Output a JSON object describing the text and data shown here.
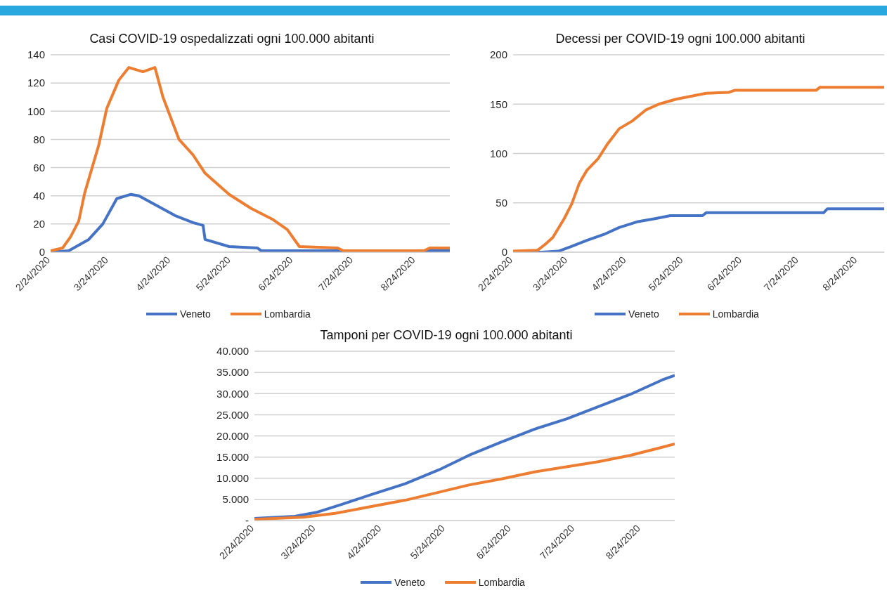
{
  "chart_data": [
    {
      "type": "line",
      "title": "Casi COVID-19 ospedalizzati ogni 100.000 abitanti",
      "xlim": [
        "2020-02-24",
        "2020-09-10"
      ],
      "xticks": [
        {
          "value": "2020-02-24",
          "label": "2/24/2020"
        },
        {
          "value": "2020-03-24",
          "label": "3/24/2020"
        },
        {
          "value": "2020-04-24",
          "label": "4/24/2020"
        },
        {
          "value": "2020-05-24",
          "label": "5/24/2020"
        },
        {
          "value": "2020-06-24",
          "label": "6/24/2020"
        },
        {
          "value": "2020-07-24",
          "label": "7/24/2020"
        },
        {
          "value": "2020-08-24",
          "label": "8/24/2020"
        }
      ],
      "ylim": [
        0,
        140
      ],
      "yticks": [
        0,
        20,
        40,
        60,
        80,
        100,
        120,
        140
      ],
      "grid": "y",
      "legend": "bottom",
      "marker": "none",
      "series": [
        {
          "name": "Veneto",
          "color": "#4472c4",
          "x": [
            "2020-02-24",
            "2020-03-04",
            "2020-03-14",
            "2020-03-21",
            "2020-03-28",
            "2020-04-04",
            "2020-04-08",
            "2020-04-17",
            "2020-04-26",
            "2020-05-05",
            "2020-05-10",
            "2020-05-11",
            "2020-05-23",
            "2020-06-06",
            "2020-06-08",
            "2020-09-10"
          ],
          "values": [
            0,
            1,
            9,
            20,
            38,
            41,
            40,
            33,
            26,
            21,
            19,
            9,
            4,
            3,
            1,
            1
          ]
        },
        {
          "name": "Lombardia",
          "color": "#ed7d31",
          "x": [
            "2020-02-24",
            "2020-03-01",
            "2020-03-05",
            "2020-03-09",
            "2020-03-12",
            "2020-03-19",
            "2020-03-23",
            "2020-03-29",
            "2020-04-03",
            "2020-04-10",
            "2020-04-16",
            "2020-04-20",
            "2020-04-28",
            "2020-05-05",
            "2020-05-11",
            "2020-05-23",
            "2020-06-03",
            "2020-06-14",
            "2020-06-21",
            "2020-06-27",
            "2020-07-16",
            "2020-07-19",
            "2020-08-28",
            "2020-08-31",
            "2020-09-10"
          ],
          "values": [
            1,
            3,
            11,
            22,
            42,
            76,
            102,
            122,
            131,
            128,
            131,
            110,
            80,
            69,
            56,
            41,
            31,
            23,
            16,
            4,
            3,
            1,
            1,
            3,
            3
          ]
        }
      ]
    },
    {
      "type": "line",
      "title": "Decessi per COVID-19 ogni 100.000 abitanti",
      "xlim": [
        "2020-02-24",
        "2020-09-07"
      ],
      "xticks": [
        {
          "value": "2020-02-24",
          "label": "2/24/2020"
        },
        {
          "value": "2020-03-24",
          "label": "3/24/2020"
        },
        {
          "value": "2020-04-24",
          "label": "4/24/2020"
        },
        {
          "value": "2020-05-24",
          "label": "5/24/2020"
        },
        {
          "value": "2020-06-24",
          "label": "6/24/2020"
        },
        {
          "value": "2020-07-24",
          "label": "7/24/2020"
        },
        {
          "value": "2020-08-24",
          "label": "8/24/2020"
        }
      ],
      "ylim": [
        0,
        200
      ],
      "yticks": [
        0,
        50,
        100,
        150,
        200
      ],
      "grid": "y",
      "legend": "bottom",
      "marker": "none",
      "series": [
        {
          "name": "Veneto",
          "color": "#4472c4",
          "x": [
            "2020-02-24",
            "2020-03-10",
            "2020-03-19",
            "2020-03-26",
            "2020-04-03",
            "2020-04-12",
            "2020-04-20",
            "2020-04-30",
            "2020-05-09",
            "2020-05-17",
            "2020-06-03",
            "2020-06-05",
            "2020-08-06",
            "2020-08-08",
            "2020-09-07"
          ],
          "values": [
            0,
            0,
            1,
            6,
            12,
            18,
            25,
            31,
            34,
            37,
            37,
            40,
            40,
            44,
            44
          ]
        },
        {
          "name": "Lombardia",
          "color": "#ed7d31",
          "x": [
            "2020-02-24",
            "2020-03-08",
            "2020-03-12",
            "2020-03-16",
            "2020-03-22",
            "2020-03-26",
            "2020-03-30",
            "2020-04-03",
            "2020-04-09",
            "2020-04-14",
            "2020-04-20",
            "2020-04-27",
            "2020-05-04",
            "2020-05-11",
            "2020-05-20",
            "2020-05-28",
            "2020-06-05",
            "2020-06-17",
            "2020-06-20",
            "2020-08-02",
            "2020-08-04",
            "2020-09-07"
          ],
          "values": [
            1,
            2,
            8,
            15,
            34,
            49,
            70,
            83,
            95,
            110,
            125,
            133,
            144,
            150,
            155,
            158,
            161,
            162,
            164,
            164,
            167,
            167
          ]
        }
      ]
    },
    {
      "type": "line",
      "title": "Tamponi per COVID-19 ogni 100.000 abitanti",
      "xlim": [
        "2020-02-24",
        "2020-09-09"
      ],
      "xticks": [
        {
          "value": "2020-02-24",
          "label": "2/24/2020"
        },
        {
          "value": "2020-03-24",
          "label": "3/24/2020"
        },
        {
          "value": "2020-04-24",
          "label": "4/24/2020"
        },
        {
          "value": "2020-05-24",
          "label": "5/24/2020"
        },
        {
          "value": "2020-06-24",
          "label": "6/24/2020"
        },
        {
          "value": "2020-07-24",
          "label": "7/24/2020"
        },
        {
          "value": "2020-08-24",
          "label": "8/24/2020"
        }
      ],
      "ylim": [
        0,
        40000
      ],
      "yticks": [
        {
          "value": 0,
          "label": "-"
        },
        {
          "value": 5000,
          "label": "5.000"
        },
        {
          "value": 10000,
          "label": "10.000"
        },
        {
          "value": 15000,
          "label": "15.000"
        },
        {
          "value": 20000,
          "label": "20.000"
        },
        {
          "value": 25000,
          "label": "25.000"
        },
        {
          "value": 30000,
          "label": "30.000"
        },
        {
          "value": 35000,
          "label": "35.000"
        },
        {
          "value": 40000,
          "label": "40.000"
        }
      ],
      "grid": "y",
      "legend": "bottom",
      "marker": "none",
      "series": [
        {
          "name": "Veneto",
          "color": "#4472c4",
          "x": [
            "2020-02-24",
            "2020-03-14",
            "2020-03-24",
            "2020-04-05",
            "2020-04-20",
            "2020-05-05",
            "2020-05-21",
            "2020-06-04",
            "2020-06-19",
            "2020-07-05",
            "2020-07-20",
            "2020-08-04",
            "2020-08-19",
            "2020-09-03",
            "2020-09-09"
          ],
          "values": [
            500,
            1000,
            1900,
            3800,
            6300,
            8700,
            12000,
            15400,
            18500,
            21600,
            24000,
            26900,
            29800,
            33200,
            34300
          ]
        },
        {
          "name": "Lombardia",
          "color": "#ed7d31",
          "x": [
            "2020-02-24",
            "2020-03-18",
            "2020-04-02",
            "2020-04-20",
            "2020-05-05",
            "2020-05-21",
            "2020-06-04",
            "2020-06-19",
            "2020-07-05",
            "2020-07-20",
            "2020-08-04",
            "2020-08-19",
            "2020-09-03",
            "2020-09-09"
          ],
          "values": [
            300,
            800,
            1700,
            3400,
            4800,
            6700,
            8400,
            9800,
            11500,
            12700,
            13900,
            15400,
            17300,
            18100
          ]
        }
      ]
    }
  ]
}
